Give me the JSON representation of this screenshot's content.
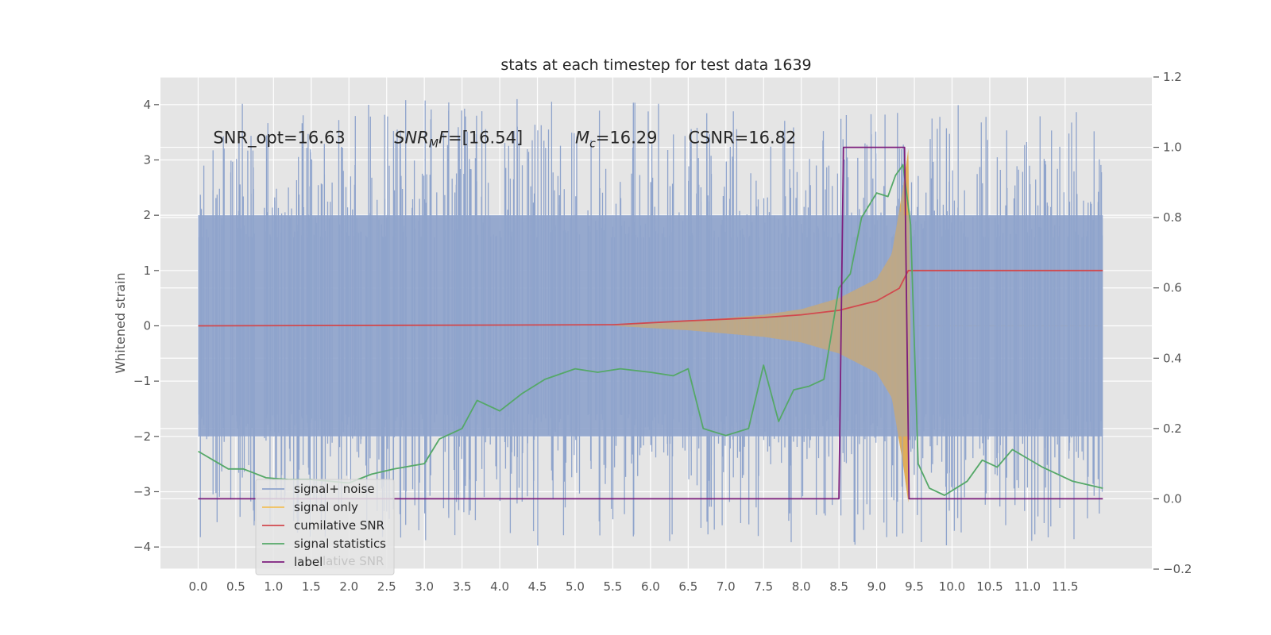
{
  "chart_data": {
    "type": "line",
    "title": "stats at each timestep for test data 1639",
    "ylabel": "Whitened strain",
    "ylabel_right": "",
    "xlim": [
      -0.5,
      12.65
    ],
    "ylim": [
      -4.4,
      4.5
    ],
    "ylim_right": [
      -0.2,
      1.2
    ],
    "x_ticks": [
      0.0,
      0.5,
      1.0,
      1.5,
      2.0,
      2.5,
      3.0,
      3.5,
      4.0,
      4.5,
      5.0,
      5.5,
      6.0,
      6.5,
      7.0,
      7.5,
      8.0,
      8.5,
      9.0,
      9.5,
      10.0,
      10.5,
      11.0,
      11.5
    ],
    "x_tick_labels": [
      "0.0",
      "0.5",
      "1.0",
      "1.5",
      "2.0",
      "2.5",
      "3.0",
      "3.5",
      "4.0",
      "4.5",
      "5.0",
      "5.5",
      "6.0",
      "6.5",
      "7.0",
      "7.5",
      "8.0",
      "8.5",
      "9.0",
      "9.5",
      "10.0",
      "10.5",
      "11.0",
      "11.5"
    ],
    "y_ticks": [
      -4,
      -3,
      -2,
      -1,
      0,
      1,
      2,
      3,
      4
    ],
    "y_tick_labels": [
      "−4",
      "−3",
      "−2",
      "−1",
      "0",
      "1",
      "2",
      "3",
      "4"
    ],
    "y2_ticks": [
      -0.2,
      0.0,
      0.2,
      0.4,
      0.6,
      0.8,
      1.0,
      1.2
    ],
    "y2_tick_labels": [
      "−0.2",
      "0.0",
      "0.2",
      "0.4",
      "0.6",
      "0.8",
      "1.0",
      "1.2"
    ],
    "grid": true,
    "legend_position": "lower-left",
    "annotations": [
      {
        "name": "snr-opt",
        "text": "SNR_opt=16.63",
        "x": 0.2,
        "y": 3.3
      },
      {
        "name": "snr-mf",
        "base": "SNR",
        "sub": "M",
        "rest": "F=[16.54]",
        "x": 2.6,
        "y": 3.3
      },
      {
        "name": "chirp-mass",
        "base": "M",
        "sub": "c",
        "rest": "=16.29",
        "x": 5.0,
        "y": 3.3
      },
      {
        "name": "csnr",
        "text": "CSNR=16.82",
        "x": 6.5,
        "y": 3.3
      }
    ],
    "series": [
      {
        "name": "signal+ noise",
        "color": "#8fa4cc",
        "kind": "noise-band",
        "x_range": [
          0.0,
          12.0
        ],
        "inner_band": [
          -2.0,
          2.0
        ],
        "spike_max": 4.1,
        "spike_min": -4.0
      },
      {
        "name": "signal only",
        "color": "#f2c05a",
        "kind": "chirp",
        "x_range": [
          5.5,
          9.45
        ],
        "amplitude_points": [
          [
            5.5,
            0.0
          ],
          [
            6.5,
            0.08
          ],
          [
            7.5,
            0.2
          ],
          [
            8.0,
            0.3
          ],
          [
            8.5,
            0.5
          ],
          [
            9.0,
            0.85
          ],
          [
            9.2,
            1.3
          ],
          [
            9.35,
            2.5
          ],
          [
            9.42,
            3.2
          ],
          [
            9.45,
            0.0
          ]
        ]
      },
      {
        "name": "cumilative SNR",
        "color": "#d1494e",
        "axis": "left",
        "points": [
          [
            0.0,
            0.0
          ],
          [
            5.5,
            0.02
          ],
          [
            6.5,
            0.09
          ],
          [
            7.5,
            0.15
          ],
          [
            8.0,
            0.2
          ],
          [
            8.5,
            0.28
          ],
          [
            9.0,
            0.45
          ],
          [
            9.3,
            0.68
          ],
          [
            9.4,
            0.95
          ],
          [
            9.42,
            1.0
          ],
          [
            12.0,
            1.0
          ]
        ]
      },
      {
        "name": "signal statistics",
        "color": "#55a868",
        "axis": "right",
        "points": [
          [
            0.0,
            0.135
          ],
          [
            0.2,
            0.11
          ],
          [
            0.4,
            0.085
          ],
          [
            0.6,
            0.085
          ],
          [
            0.9,
            0.06
          ],
          [
            1.2,
            0.055
          ],
          [
            1.5,
            0.055
          ],
          [
            2.0,
            0.045
          ],
          [
            2.3,
            0.07
          ],
          [
            2.6,
            0.085
          ],
          [
            3.0,
            0.1
          ],
          [
            3.2,
            0.17
          ],
          [
            3.5,
            0.2
          ],
          [
            3.7,
            0.28
          ],
          [
            4.0,
            0.25
          ],
          [
            4.3,
            0.3
          ],
          [
            4.6,
            0.34
          ],
          [
            5.0,
            0.37
          ],
          [
            5.3,
            0.36
          ],
          [
            5.6,
            0.37
          ],
          [
            6.0,
            0.36
          ],
          [
            6.3,
            0.35
          ],
          [
            6.5,
            0.37
          ],
          [
            6.7,
            0.2
          ],
          [
            7.0,
            0.18
          ],
          [
            7.3,
            0.2
          ],
          [
            7.5,
            0.38
          ],
          [
            7.7,
            0.22
          ],
          [
            7.9,
            0.31
          ],
          [
            8.1,
            0.32
          ],
          [
            8.3,
            0.34
          ],
          [
            8.5,
            0.6
          ],
          [
            8.65,
            0.64
          ],
          [
            8.8,
            0.8
          ],
          [
            9.0,
            0.87
          ],
          [
            9.15,
            0.86
          ],
          [
            9.25,
            0.92
          ],
          [
            9.35,
            0.95
          ],
          [
            9.45,
            0.78
          ],
          [
            9.55,
            0.1
          ],
          [
            9.7,
            0.03
          ],
          [
            9.9,
            0.01
          ],
          [
            10.2,
            0.05
          ],
          [
            10.4,
            0.11
          ],
          [
            10.6,
            0.09
          ],
          [
            10.8,
            0.14
          ],
          [
            11.2,
            0.09
          ],
          [
            11.6,
            0.05
          ],
          [
            12.0,
            0.03
          ]
        ]
      },
      {
        "name": "label",
        "color": "#7d1e7d",
        "axis": "right",
        "points": [
          [
            0.0,
            0.0
          ],
          [
            8.5,
            0.0
          ],
          [
            8.56,
            1.0
          ],
          [
            9.37,
            1.0
          ],
          [
            9.43,
            0.0
          ],
          [
            12.0,
            0.0
          ]
        ]
      }
    ],
    "legend": [
      "signal+ noise",
      "signal only",
      "cumilative SNR",
      "signal statistics",
      "label"
    ],
    "legend_overlapped_text": "lative SNR"
  },
  "colors": {
    "plot_bg": "#e5e5e5",
    "grid": "#ffffff",
    "tick": "#555555"
  }
}
